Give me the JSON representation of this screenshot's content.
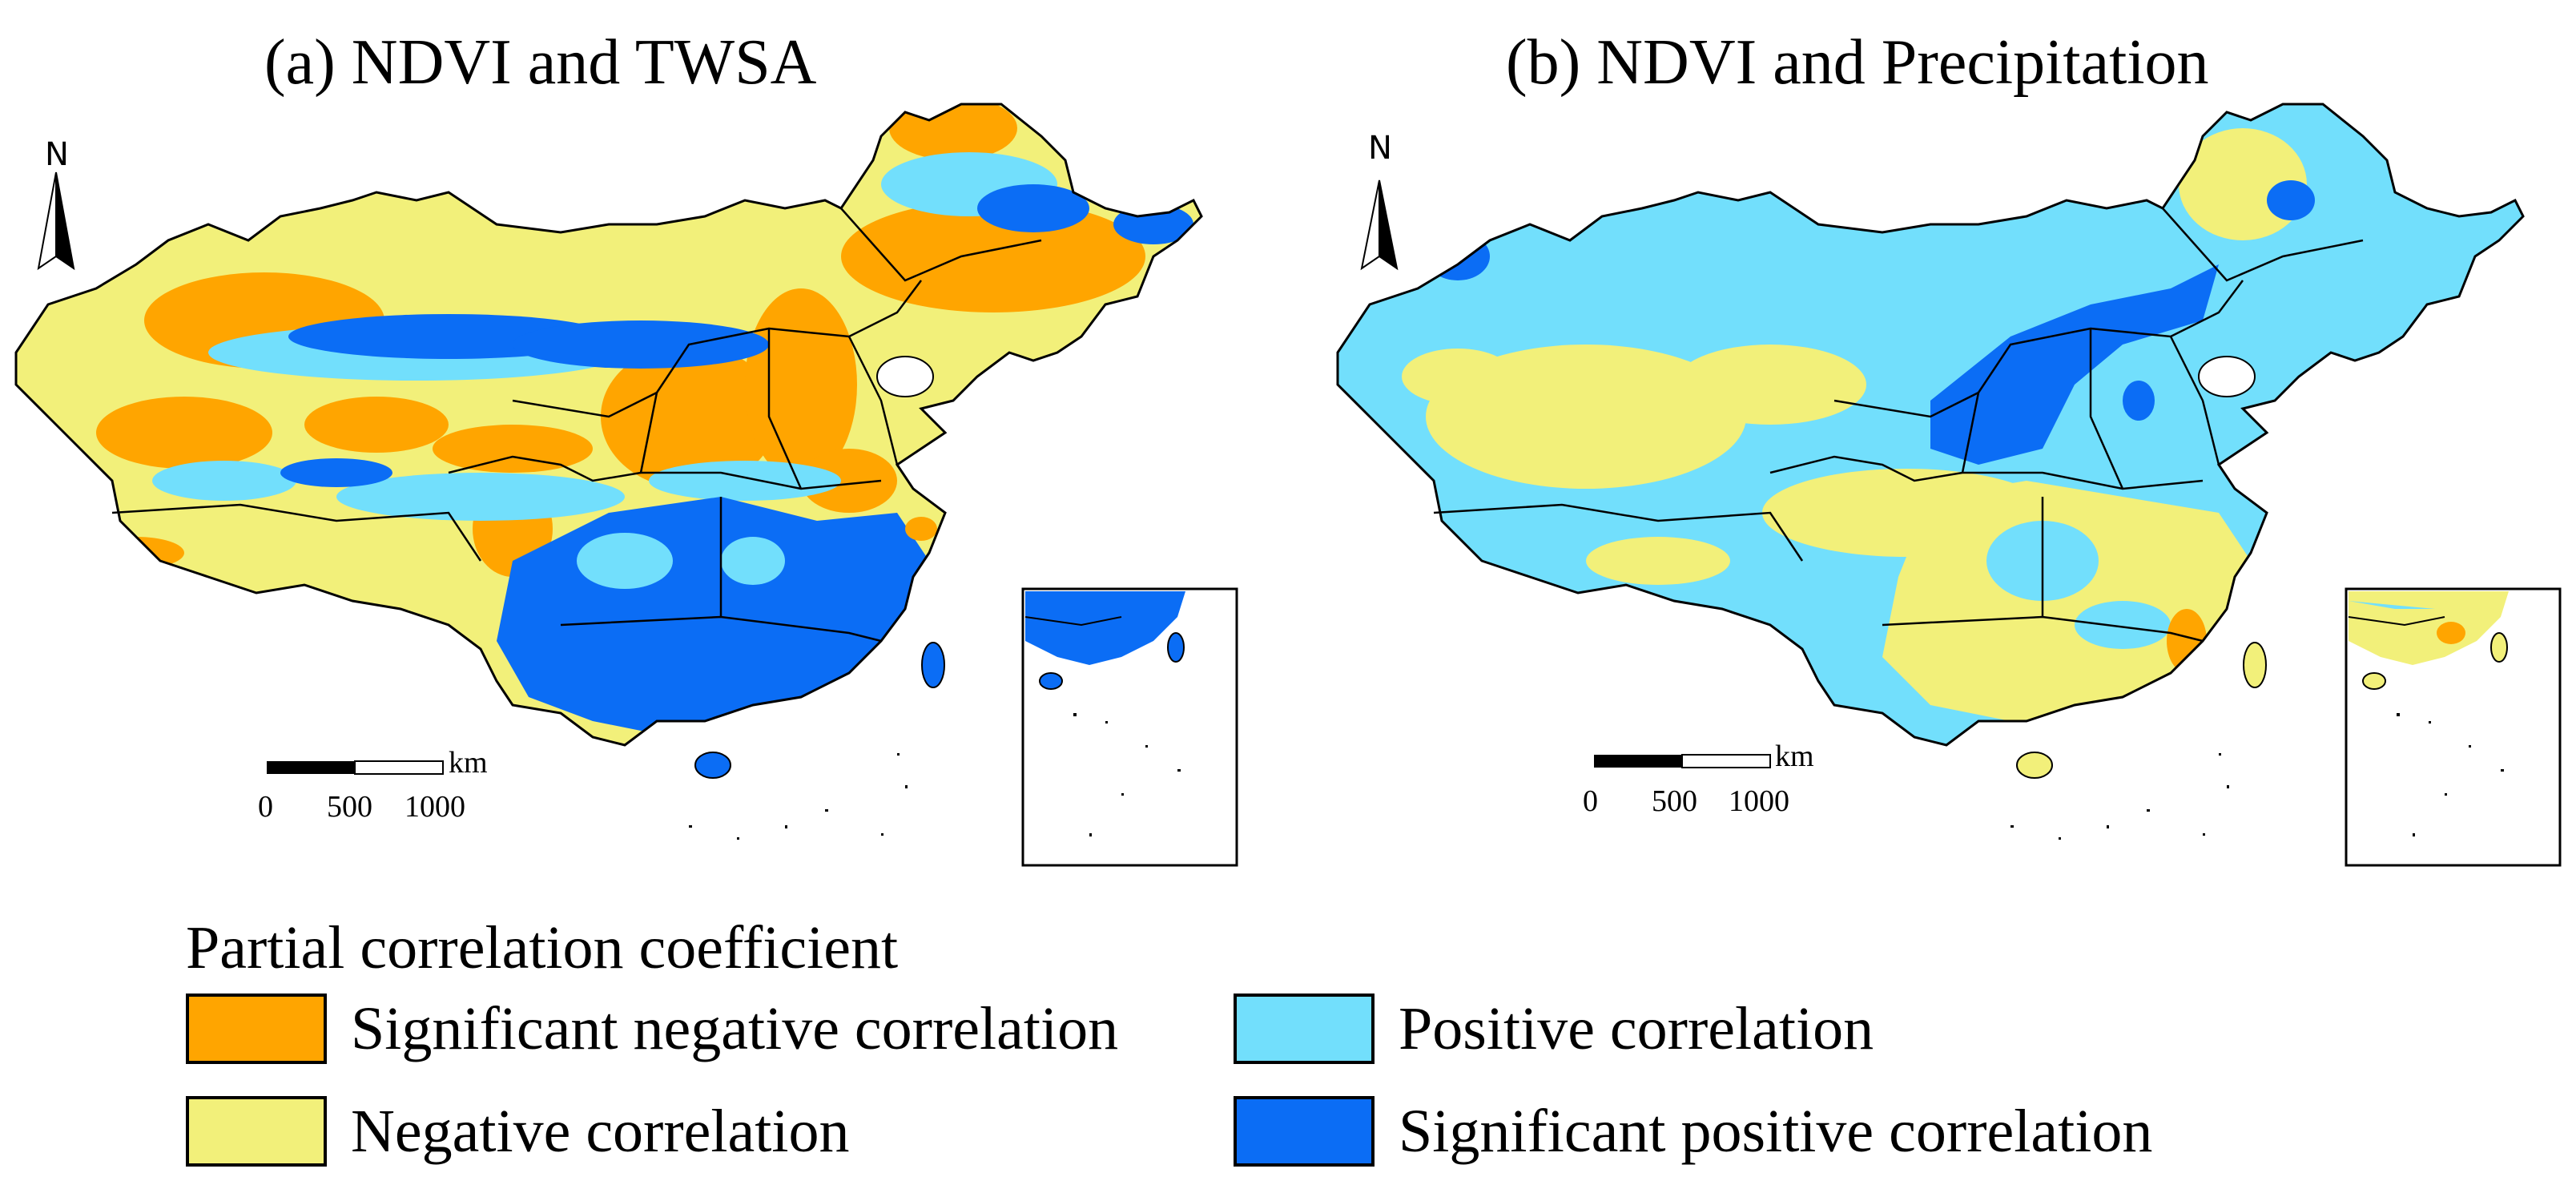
{
  "colors": {
    "significant_negative": "#FFA500",
    "negative": "#F2F07A",
    "positive": "#72DFFC",
    "significant_positive": "#0B6DF5",
    "border": "#000000",
    "sea": "#ffffff"
  },
  "panels": [
    {
      "title": "(a)  NDVI and TWSA",
      "north_label": "N",
      "scale_unit": "km",
      "scale_ticks": [
        "0",
        "500",
        "1000"
      ],
      "dominant_classes": [
        "significant_negative",
        "negative",
        "significant_positive"
      ]
    },
    {
      "title": "(b) NDVI and Precipitation",
      "north_label": "N",
      "scale_unit": "km",
      "scale_ticks": [
        "0",
        "500",
        "1000"
      ],
      "dominant_classes": [
        "positive",
        "negative",
        "significant_positive"
      ]
    }
  ],
  "legend": {
    "title": "Partial correlation coefficient",
    "items": [
      {
        "key": "significant_negative",
        "label": "Significant negative correlation"
      },
      {
        "key": "negative",
        "label": "Negative correlation"
      },
      {
        "key": "positive",
        "label": "Positive correlation"
      },
      {
        "key": "significant_positive",
        "label": "Significant positive correlation"
      }
    ]
  }
}
